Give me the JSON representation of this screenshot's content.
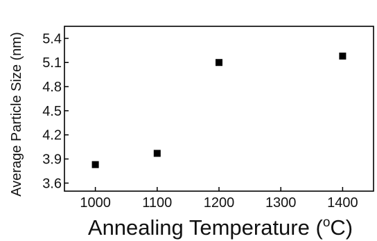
{
  "chart_data": {
    "type": "scatter",
    "x": [
      1000,
      1100,
      1200,
      1400
    ],
    "y": [
      3.83,
      3.97,
      5.1,
      5.18
    ],
    "xlabel_prefix": "Annealing Temperature (",
    "xlabel_superscript": "o",
    "xlabel_suffix": "C)",
    "ylabel": "Average Particle Size (nm)",
    "xlim": [
      950,
      1450
    ],
    "ylim": [
      3.5,
      5.55
    ],
    "xticks": [
      1000,
      1100,
      1200,
      1300,
      1400
    ],
    "yticks": [
      3.6,
      3.9,
      4.2,
      4.5,
      4.8,
      5.1,
      5.4
    ],
    "ytick_labels": [
      "3.6",
      "3.9",
      "4.2",
      "4.5",
      "4.8",
      "5.1",
      "5.4"
    ],
    "marker": "square",
    "marker_color": "#000000",
    "grid": false,
    "legend": "none"
  }
}
